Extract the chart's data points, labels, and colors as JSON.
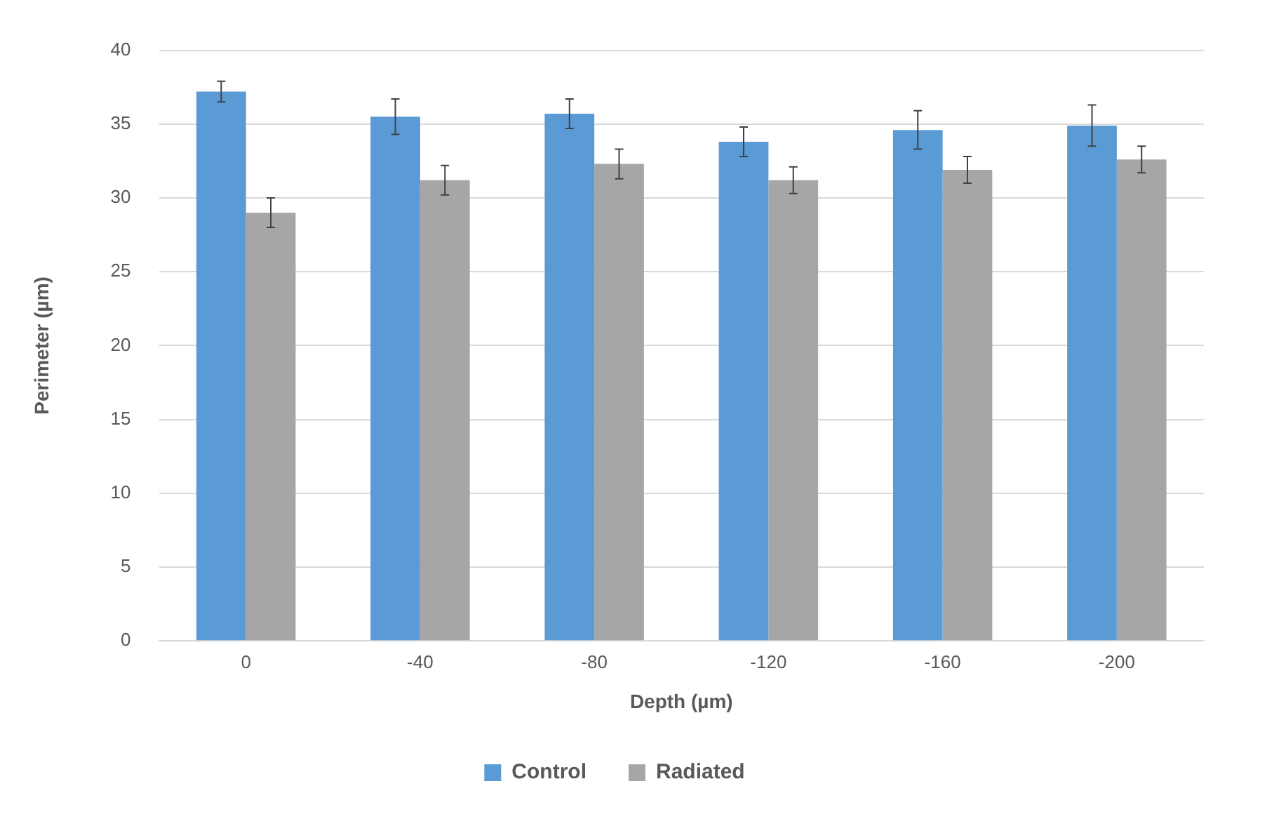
{
  "chart_data": {
    "type": "bar",
    "xlabel": "Depth (µm)",
    "ylabel": "Perimeter (µm)",
    "categories": [
      "0",
      "-40",
      "-80",
      "-120",
      "-160",
      "-200"
    ],
    "series": [
      {
        "name": "Control",
        "color": "#5b9bd5",
        "values": [
          37.2,
          35.5,
          35.7,
          33.8,
          34.6,
          34.9
        ],
        "errors": [
          0.7,
          1.2,
          1.0,
          1.0,
          1.3,
          1.4
        ]
      },
      {
        "name": "Radiated",
        "color": "#a6a6a6",
        "values": [
          29.0,
          31.2,
          32.3,
          31.2,
          31.9,
          32.6
        ],
        "errors": [
          1.0,
          1.0,
          1.0,
          0.9,
          0.9,
          0.9
        ]
      }
    ],
    "ylim": [
      0,
      40
    ],
    "yticks": [
      0,
      5,
      10,
      15,
      20,
      25,
      30,
      35,
      40
    ],
    "grid": "y",
    "legend": "bottom"
  }
}
